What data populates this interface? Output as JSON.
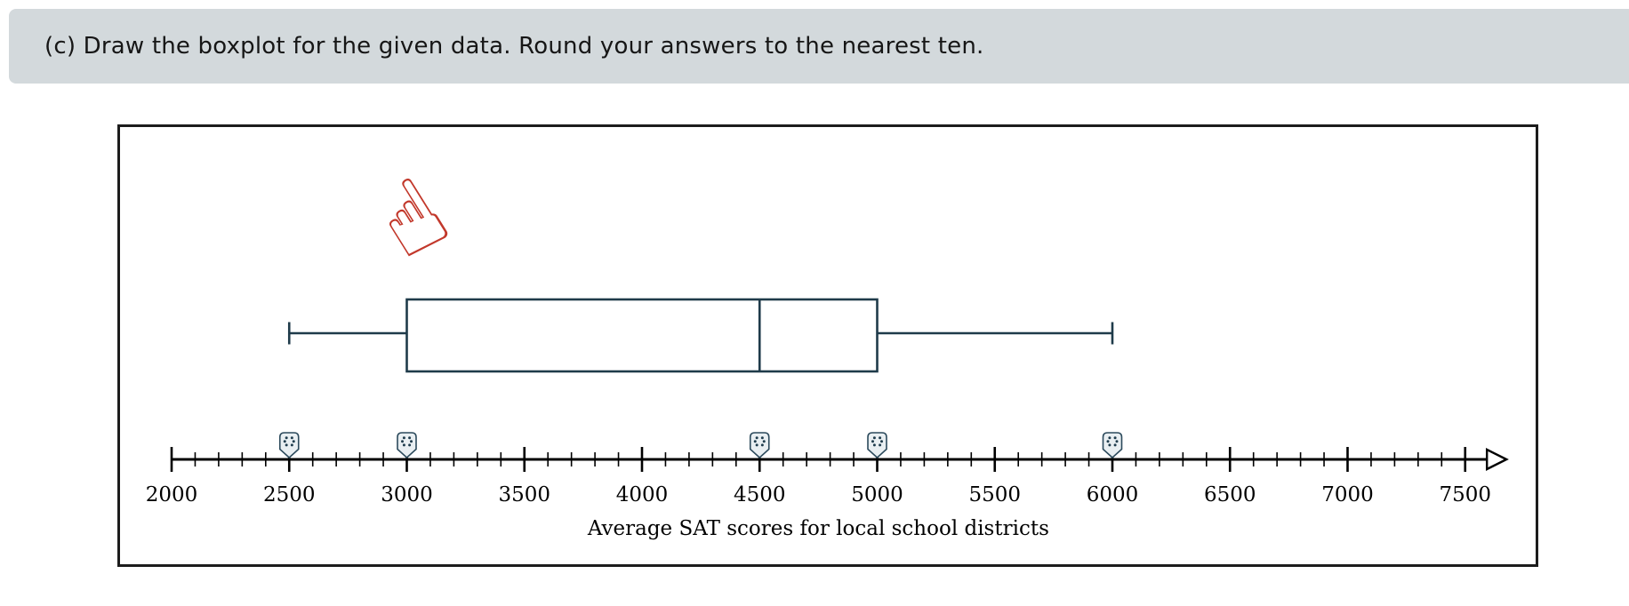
{
  "header": {
    "prompt": "(c) Draw the boxplot for the given data. Round your answers to the nearest ten."
  },
  "cursor": {
    "icon": "pointing-hand-icon",
    "glyph": "☝"
  },
  "colors": {
    "header_bg": "#d3d9dc",
    "frame_border": "#1c1c1c",
    "axis": "#000000",
    "box_stroke": "#1f3b4a",
    "handle_fill": "#e9eff2",
    "handle_stroke": "#2c4a5c",
    "handle_dots": "#203d4e",
    "cursor_red": "#c2382b"
  },
  "chart_data": {
    "type": "boxplot",
    "title": "Average SAT scores for local school districts",
    "axis": {
      "min": 2000,
      "max": 7500,
      "minor_step": 100,
      "label_step": 500,
      "overshoot": 100,
      "tick_labels": [
        "2000",
        "2500",
        "3000",
        "3500",
        "4000",
        "4500",
        "5000",
        "5500",
        "6000",
        "6500",
        "7000",
        "7500"
      ]
    },
    "values": {
      "min": 2500,
      "q1": 3000,
      "median": 4500,
      "q3": 5000,
      "max": 6000
    },
    "handles": [
      2500,
      3000,
      4500,
      5000,
      6000
    ]
  }
}
